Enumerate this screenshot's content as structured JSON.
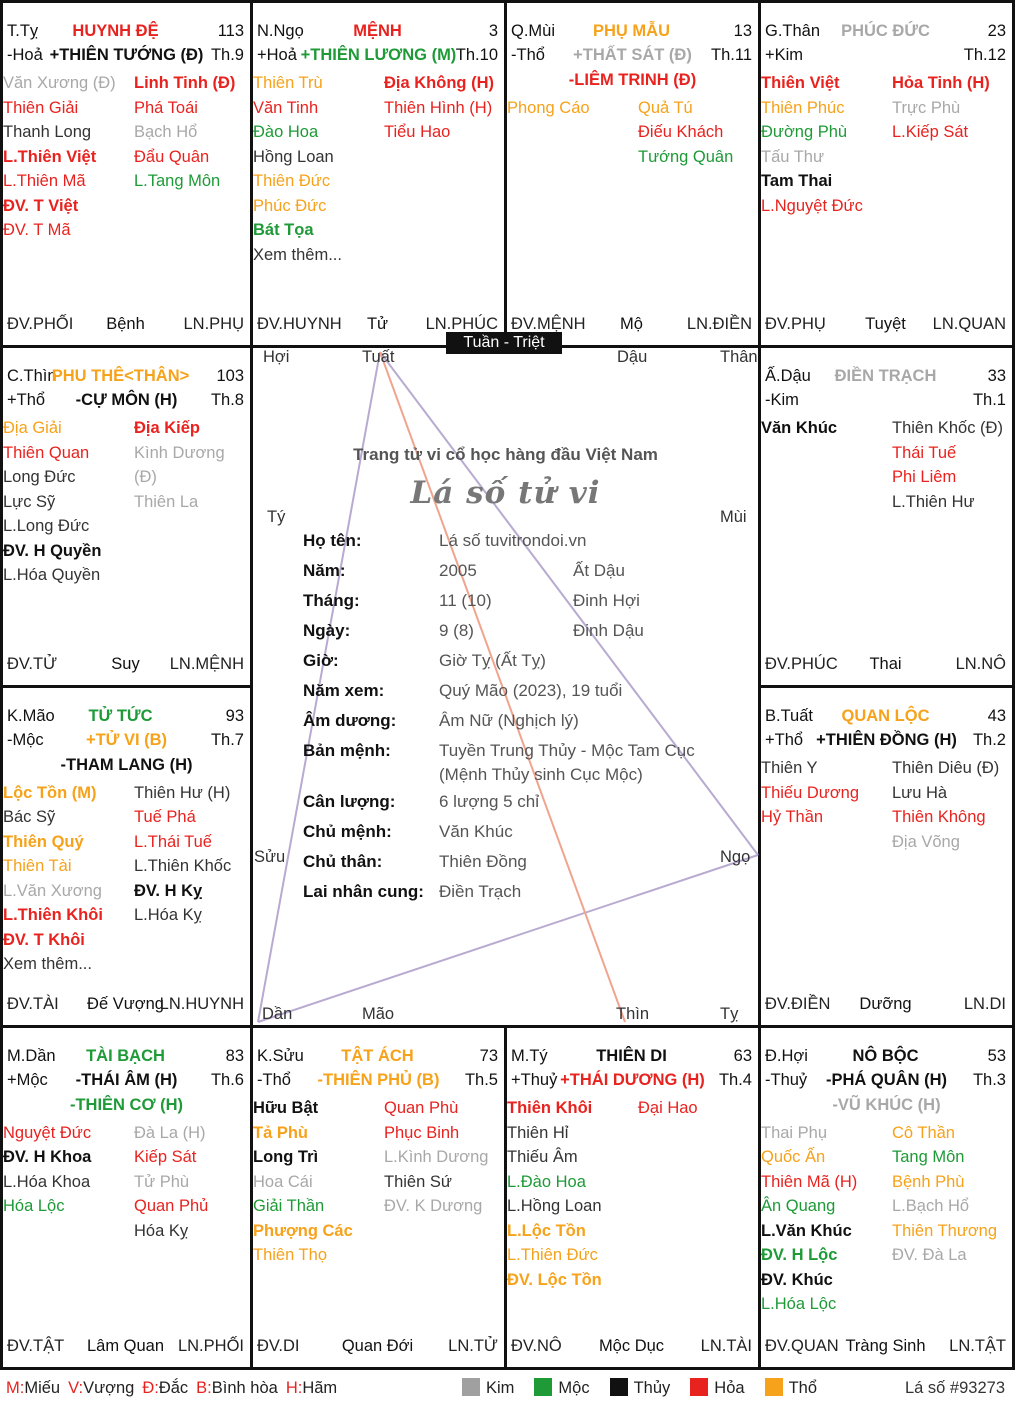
{
  "center": {
    "tuan_triet": "Tuần - Triệt",
    "slogan": "Trang tử vi cổ học hàng đầu Việt Nam",
    "title": "Lá số tử vi",
    "branch_labels": {
      "hoi": "Hợi",
      "tuat": "Tuất",
      "dau": "Dậu",
      "than": "Thân",
      "ty_top": "Tý",
      "mui": "Mùi",
      "suu": "Sửu",
      "ngo": "Ngọ",
      "dan": "Dần",
      "mao": "Mão",
      "thin": "Thìn",
      "ty_bot": "Tỵ"
    },
    "info": [
      {
        "k": "Họ tên:",
        "v": "Lá số tuvitrondoi.vn",
        "v2": ""
      },
      {
        "k": "Năm:",
        "v": "2005",
        "v2": "Ất Dậu"
      },
      {
        "k": "Tháng:",
        "v": "11 (10)",
        "v2": "Đinh Hợi"
      },
      {
        "k": "Ngày:",
        "v": "9 (8)",
        "v2": "Đinh Dậu"
      },
      {
        "k": "Giờ:",
        "v": "Giờ Tỵ (Ất Tỵ)",
        "v2": ""
      },
      {
        "k": "Năm xem:",
        "v": "Quý Mão (2023), 19 tuổi",
        "v2": ""
      },
      {
        "k": "Âm dương:",
        "v": "Âm Nữ (Nghịch lý)",
        "v2": ""
      },
      {
        "k": "Bản mệnh:",
        "v": "Tuyền Trung Thủy - Mộc Tam Cục",
        "v2": ""
      },
      {
        "k": "",
        "v": "(Mệnh Thủy sinh Cục Mộc)",
        "v2": ""
      },
      {
        "k": "Cân lượng:",
        "v": "6 lượng 5 chỉ",
        "v2": ""
      },
      {
        "k": "Chủ mệnh:",
        "v": "Văn Khúc",
        "v2": ""
      },
      {
        "k": "Chủ thân:",
        "v": "Thiên Đồng",
        "v2": ""
      },
      {
        "k": "Lai nhân cung:",
        "v": "Điền Trạch",
        "v2": ""
      }
    ]
  },
  "palaces": {
    "ty": {
      "branch": "T.Tỵ",
      "name": "HUYNH ĐỆ",
      "age": "113",
      "element": "-Hoả",
      "th": "Th.9",
      "main": [
        {
          "t": "+THIÊN TƯỚNG (Đ)",
          "c": "blk"
        }
      ],
      "left": [
        {
          "t": "Văn Xương (Đ)",
          "c": "gry"
        },
        {
          "t": "Thiên Giải",
          "c": "red"
        },
        {
          "t": "Thanh Long",
          "c": "dk"
        },
        {
          "t": "L.Thiên Việt",
          "c": "red b"
        },
        {
          "t": "L.Thiên Mã",
          "c": "red"
        },
        {
          "t": "ĐV. T Việt",
          "c": "red b"
        },
        {
          "t": "ĐV. T Mã",
          "c": "red"
        }
      ],
      "right": [
        {
          "t": "Linh Tinh (Đ)",
          "c": "red b"
        },
        {
          "t": "Phá Toái",
          "c": "red"
        },
        {
          "t": "Bạch Hổ",
          "c": "gry"
        },
        {
          "t": "Đẩu Quân",
          "c": "red"
        },
        {
          "t": "L.Tang Môn",
          "c": "grn"
        }
      ],
      "foot": [
        "ĐV.PHỐI",
        "Bệnh",
        "LN.PHỤ"
      ]
    },
    "ngo": {
      "branch": "N.Ngọ",
      "name": "MỆNH",
      "age": "3",
      "element": "+Hoả",
      "th": "Th.10",
      "main": [
        {
          "t": "+THIÊN LƯƠNG (M)",
          "c": "grn"
        }
      ],
      "left": [
        {
          "t": "Thiên Trù",
          "c": "org"
        },
        {
          "t": "Văn Tinh",
          "c": "red"
        },
        {
          "t": "Đào Hoa",
          "c": "grn"
        },
        {
          "t": "Hồng Loan",
          "c": "dk"
        },
        {
          "t": "Thiên Đức",
          "c": "org"
        },
        {
          "t": "Phúc Đức",
          "c": "org"
        },
        {
          "t": "Bát Tọa",
          "c": "grn b"
        },
        {
          "t": "Xem thêm...",
          "c": "dk"
        }
      ],
      "right": [
        {
          "t": "Địa Không (H)",
          "c": "red b"
        },
        {
          "t": "Thiên Hình (H)",
          "c": "red"
        },
        {
          "t": "Tiểu Hao",
          "c": "red"
        }
      ],
      "foot": [
        "ĐV.HUYNH",
        "Tử",
        "LN.PHÚC"
      ]
    },
    "mui": {
      "branch": "Q.Mùi",
      "name": "PHỤ MẪU",
      "age": "13",
      "element": "-Thổ",
      "th": "Th.11",
      "main": [
        {
          "t": "+THẤT SÁT (Đ)",
          "c": "gry"
        },
        {
          "t": "-LIÊM TRINH (Đ)",
          "c": "red"
        }
      ],
      "left": [
        {
          "t": "Phong Cáo",
          "c": "org"
        }
      ],
      "right": [
        {
          "t": "Quả Tú",
          "c": "org"
        },
        {
          "t": "Điếu Khách",
          "c": "red"
        },
        {
          "t": "Tướng Quân",
          "c": "grn"
        }
      ],
      "foot": [
        "ĐV.MỆNH",
        "Mộ",
        "LN.ĐIỀN"
      ]
    },
    "than": {
      "branch": "G.Thân",
      "name": "PHÚC ĐỨC",
      "age": "23",
      "element": "+Kim",
      "th": "Th.12",
      "main": [],
      "left": [
        {
          "t": "Thiên Việt",
          "c": "red b"
        },
        {
          "t": "Thiên Phúc",
          "c": "org"
        },
        {
          "t": "Đường Phù",
          "c": "grn"
        },
        {
          "t": "Tấu Thư",
          "c": "gry"
        },
        {
          "t": "Tam Thai",
          "c": "blk b"
        },
        {
          "t": "L.Nguyệt Đức",
          "c": "red"
        }
      ],
      "right": [
        {
          "t": "Hỏa Tinh (H)",
          "c": "red b"
        },
        {
          "t": "Trực Phù",
          "c": "gry"
        },
        {
          "t": "L.Kiếp Sát",
          "c": "red"
        }
      ],
      "foot": [
        "ĐV.PHỤ",
        "Tuyệt",
        "LN.QUAN"
      ]
    },
    "thin": {
      "branch": "C.Thìn",
      "name": "PHU THÊ<THÂN>",
      "age": "103",
      "element": "+Thổ",
      "th": "Th.8",
      "main": [
        {
          "t": "-CỰ MÔN (H)",
          "c": "blk"
        }
      ],
      "left": [
        {
          "t": "Địa Giải",
          "c": "org"
        },
        {
          "t": "Thiên Quan",
          "c": "red"
        },
        {
          "t": "Long Đức",
          "c": "dk"
        },
        {
          "t": "Lực Sỹ",
          "c": "dk"
        },
        {
          "t": "L.Long Đức",
          "c": "dk"
        },
        {
          "t": "ĐV. H Quyền",
          "c": "blk b"
        },
        {
          "t": "L.Hóa Quyền",
          "c": "dk"
        }
      ],
      "right": [
        {
          "t": "Địa Kiếp",
          "c": "red b"
        },
        {
          "t": "Kình Dương",
          "c": "gry"
        },
        {
          "t": "(Đ)",
          "c": "gry"
        },
        {
          "t": "Thiên La",
          "c": "gry"
        }
      ],
      "foot": [
        "ĐV.TỬ",
        "Suy",
        "LN.MỆNH"
      ]
    },
    "dau": {
      "branch": "Ấ.Dậu",
      "name": "ĐIỀN TRẠCH",
      "age": "33",
      "element": "-Kim",
      "th": "Th.1",
      "main": [],
      "left": [
        {
          "t": "Văn Khúc",
          "c": "blk b"
        }
      ],
      "right": [
        {
          "t": "Thiên Khốc (Đ)",
          "c": "dk"
        },
        {
          "t": "Thái Tuế",
          "c": "red"
        },
        {
          "t": "Phi Liêm",
          "c": "red"
        },
        {
          "t": "L.Thiên Hư",
          "c": "dk"
        }
      ],
      "foot": [
        "ĐV.PHÚC",
        "Thai",
        "LN.NÔ"
      ]
    },
    "mao": {
      "branch": "K.Mão",
      "name": "TỬ TỨC",
      "age": "93",
      "element": "-Mộc",
      "th": "Th.7",
      "main": [
        {
          "t": "+TỬ VI (B)",
          "c": "org"
        },
        {
          "t": "-THAM LANG (H)",
          "c": "blk"
        }
      ],
      "left": [
        {
          "t": "Lộc Tồn (M)",
          "c": "org b"
        },
        {
          "t": "Bác Sỹ",
          "c": "dk"
        },
        {
          "t": "Thiên Quý",
          "c": "org b"
        },
        {
          "t": "Thiên Tài",
          "c": "org"
        },
        {
          "t": "L.Văn Xương",
          "c": "gry"
        },
        {
          "t": "L.Thiên Khôi",
          "c": "red b"
        },
        {
          "t": "ĐV. T Khôi",
          "c": "red b"
        },
        {
          "t": "Xem thêm...",
          "c": "dk"
        }
      ],
      "right": [
        {
          "t": "Thiên Hư (H)",
          "c": "dk"
        },
        {
          "t": "Tuế Phá",
          "c": "red"
        },
        {
          "t": "L.Thái Tuế",
          "c": "red"
        },
        {
          "t": "L.Thiên Khốc",
          "c": "dk"
        },
        {
          "t": "ĐV. H Kỵ",
          "c": "blk b"
        },
        {
          "t": "L.Hóa Kỵ",
          "c": "dk"
        }
      ],
      "foot": [
        "ĐV.TÀI",
        "Đế Vượng",
        "LN.HUYNH"
      ]
    },
    "tuat": {
      "branch": "B.Tuất",
      "name": "QUAN LỘC",
      "age": "43",
      "element": "+Thổ",
      "th": "Th.2",
      "main": [
        {
          "t": "+THIÊN ĐỒNG (H)",
          "c": "blk"
        }
      ],
      "left": [
        {
          "t": "Thiên Y",
          "c": "dk"
        },
        {
          "t": "Thiếu Dương",
          "c": "red"
        },
        {
          "t": "Hỷ Thần",
          "c": "red"
        }
      ],
      "right": [
        {
          "t": "Thiên Diêu (Đ)",
          "c": "dk"
        },
        {
          "t": "Lưu Hà",
          "c": "dk"
        },
        {
          "t": "Thiên Không",
          "c": "red"
        },
        {
          "t": "Địa Võng",
          "c": "gry"
        }
      ],
      "foot": [
        "ĐV.ĐIỀN",
        "Dưỡng",
        "LN.DI"
      ]
    },
    "dan": {
      "branch": "M.Dần",
      "name": "TÀI BẠCH",
      "age": "83",
      "element": "+Mộc",
      "th": "Th.6",
      "main": [
        {
          "t": "-THÁI ÂM (H)",
          "c": "blk"
        },
        {
          "t": "-THIÊN CƠ (H)",
          "c": "grn"
        }
      ],
      "left": [
        {
          "t": "Nguyệt Đức",
          "c": "red"
        },
        {
          "t": "ĐV. H Khoa",
          "c": "blk b"
        },
        {
          "t": "L.Hóa Khoa",
          "c": "dk"
        },
        {
          "t": "Hóa Lộc",
          "c": "grn"
        }
      ],
      "right": [
        {
          "t": "Đà La (H)",
          "c": "gry"
        },
        {
          "t": "Kiếp Sát",
          "c": "red"
        },
        {
          "t": "Tử Phù",
          "c": "gry"
        },
        {
          "t": "Quan Phủ",
          "c": "red"
        },
        {
          "t": "Hóa Kỵ",
          "c": "dk"
        }
      ],
      "foot": [
        "ĐV.TẬT",
        "Lâm Quan",
        "LN.PHỐI"
      ]
    },
    "suu": {
      "branch": "K.Sửu",
      "name": "TẬT ÁCH",
      "age": "73",
      "element": "-Thổ",
      "th": "Th.5",
      "main": [
        {
          "t": "-THIÊN PHỦ (B)",
          "c": "org"
        }
      ],
      "left": [
        {
          "t": "Hữu Bật",
          "c": "blk b"
        },
        {
          "t": "Tả Phù",
          "c": "org b"
        },
        {
          "t": "Long Trì",
          "c": "blk b"
        },
        {
          "t": "Hoa Cái",
          "c": "gry"
        },
        {
          "t": "Giải Thần",
          "c": "grn"
        },
        {
          "t": "Phượng Các",
          "c": "org b"
        },
        {
          "t": "Thiên Thọ",
          "c": "org"
        }
      ],
      "right": [
        {
          "t": "Quan Phù",
          "c": "red"
        },
        {
          "t": "Phục Binh",
          "c": "red"
        },
        {
          "t": "L.Kình Dương",
          "c": "gry"
        },
        {
          "t": "Thiên Sứ",
          "c": "dk"
        },
        {
          "t": "ĐV. K Dương",
          "c": "gry"
        }
      ],
      "foot": [
        "ĐV.DI",
        "Quan Đới",
        "LN.TỬ"
      ]
    },
    "tyb": {
      "branch": "M.Tý",
      "name": "THIÊN DI",
      "age": "63",
      "element": "+Thuỷ",
      "th": "Th.4",
      "main": [
        {
          "t": "+THÁI DƯƠNG (H)",
          "c": "red"
        }
      ],
      "left": [
        {
          "t": "Thiên Khôi",
          "c": "red b"
        },
        {
          "t": "Thiên Hỉ",
          "c": "dk"
        },
        {
          "t": "Thiếu Âm",
          "c": "dk"
        },
        {
          "t": "L.Đào Hoa",
          "c": "grn"
        },
        {
          "t": "L.Hồng Loan",
          "c": "dk"
        },
        {
          "t": "L.Lộc Tồn",
          "c": "org b"
        },
        {
          "t": "L.Thiên Đức",
          "c": "org"
        },
        {
          "t": "ĐV. Lộc Tồn",
          "c": "org b"
        }
      ],
      "right": [
        {
          "t": "Đại Hao",
          "c": "red"
        }
      ],
      "foot": [
        "ĐV.NÔ",
        "Mộc Dục",
        "LN.TÀI"
      ]
    },
    "hoi": {
      "branch": "Đ.Hợi",
      "name": "NÔ BỘC",
      "age": "53",
      "element": "-Thuỷ",
      "th": "Th.3",
      "main": [
        {
          "t": "-PHÁ QUÂN (H)",
          "c": "blk"
        },
        {
          "t": "-VŨ KHÚC (H)",
          "c": "gry"
        }
      ],
      "left": [
        {
          "t": "Thai Phụ",
          "c": "gry"
        },
        {
          "t": "Quốc Ấn",
          "c": "org"
        },
        {
          "t": "Thiên Mã (H)",
          "c": "red"
        },
        {
          "t": "Ân Quang",
          "c": "grn"
        },
        {
          "t": "L.Văn Khúc",
          "c": "blk b"
        },
        {
          "t": "ĐV. H Lộc",
          "c": "grn b"
        },
        {
          "t": "ĐV. Khúc",
          "c": "blk b"
        },
        {
          "t": "L.Hóa Lộc",
          "c": "grn"
        }
      ],
      "right": [
        {
          "t": "Cô Thần",
          "c": "org"
        },
        {
          "t": "Tang Môn",
          "c": "grn"
        },
        {
          "t": "Bệnh Phù",
          "c": "org"
        },
        {
          "t": "L.Bạch Hổ",
          "c": "gry"
        },
        {
          "t": "Thiên Thương",
          "c": "org"
        },
        {
          "t": "ĐV. Đà La",
          "c": "gry"
        }
      ],
      "foot": [
        "ĐV.QUAN",
        "Tràng Sinh",
        "LN.TẬT"
      ]
    }
  },
  "legend": {
    "abbr": [
      {
        "k": "M:",
        "v": "Miếu"
      },
      {
        "k": "V:",
        "v": "Vượng"
      },
      {
        "k": "Đ:",
        "v": "Đắc"
      },
      {
        "k": "B:",
        "v": "Bình hòa"
      },
      {
        "k": "H:",
        "v": "Hãm"
      }
    ],
    "elements": [
      {
        "name": "Kim",
        "color": "#a0a0a0"
      },
      {
        "name": "Mộc",
        "color": "#1e9a37"
      },
      {
        "name": "Thủy",
        "color": "#111111"
      },
      {
        "name": "Hỏa",
        "color": "#e8231f"
      },
      {
        "name": "Thổ",
        "color": "#f6a21a"
      }
    ],
    "chart_id": "Lá số #93273"
  },
  "colors": {
    "red": "#e8231f",
    "green": "#1e9a37",
    "orange": "#f6a21a",
    "gray": "#a8a8a8",
    "line_purple": "#b2a4cc",
    "line_salmon": "#f0a48e"
  }
}
